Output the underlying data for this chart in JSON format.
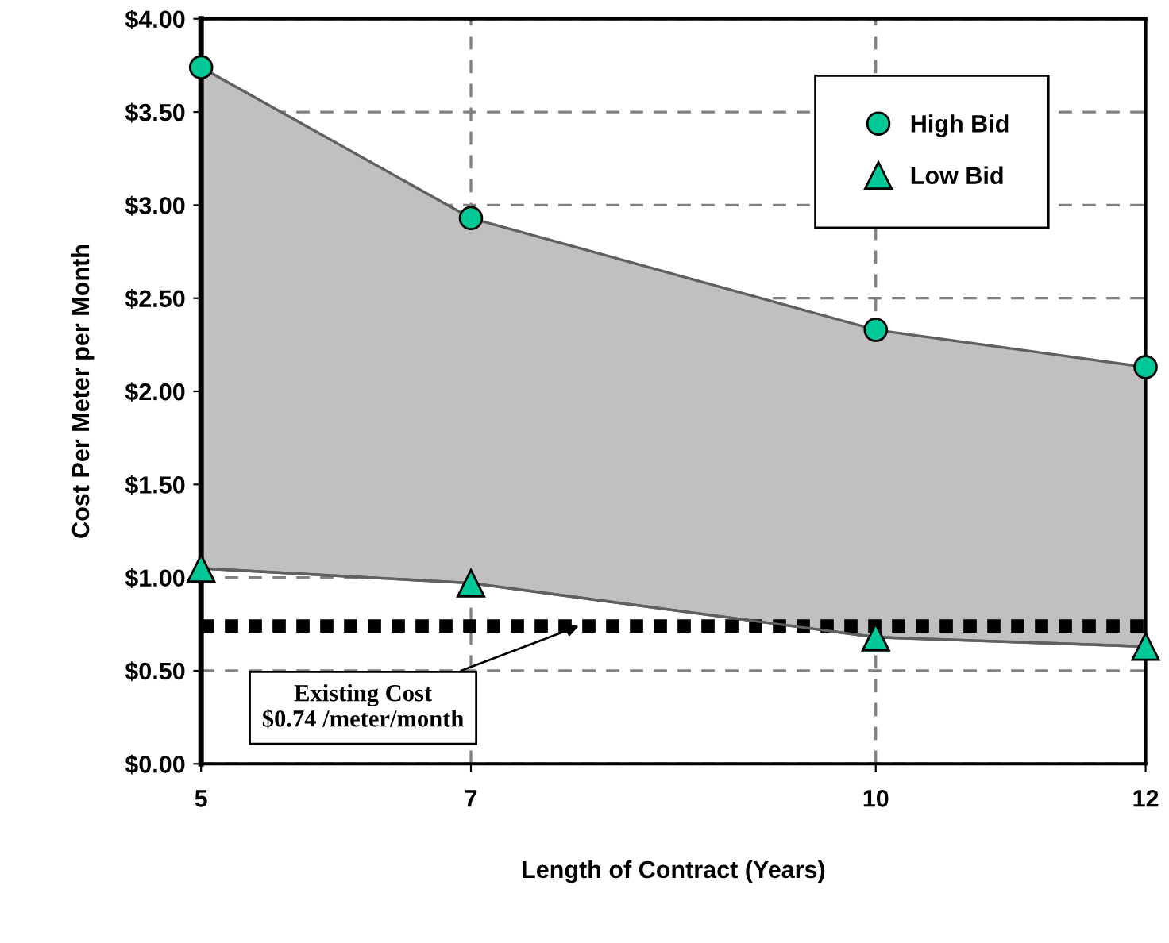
{
  "chart_data": {
    "type": "line",
    "xlabel": "Length of Contract (Years)",
    "ylabel": "Cost Per Meter per Month",
    "x": [
      5,
      7,
      10,
      12
    ],
    "series": [
      {
        "name": "High Bid",
        "color": "#00c896",
        "marker": "circle",
        "values": [
          3.74,
          2.93,
          2.33,
          2.13
        ],
        "lower": [
          1.05,
          0.97,
          0.68,
          0.63
        ],
        "upper": [
          3.74,
          2.93,
          2.33,
          2.13
        ]
      },
      {
        "name": "Low Bid",
        "color": "#00c896",
        "marker": "triangle",
        "values": [
          1.05,
          0.97,
          0.68,
          0.63
        ]
      }
    ],
    "xlim": [
      5,
      12
    ],
    "xticks": [
      5,
      7,
      10,
      12
    ],
    "ylim": [
      0,
      4
    ],
    "yticks": [
      {
        "value": 0,
        "label": "$0.00"
      },
      {
        "value": 0.5,
        "label": "$0.50"
      },
      {
        "value": 1,
        "label": "$1.00"
      },
      {
        "value": 1.5,
        "label": "$1.50"
      },
      {
        "value": 2,
        "label": "$2.00"
      },
      {
        "value": 2.5,
        "label": "$2.50"
      },
      {
        "value": 3,
        "label": "$3.00"
      },
      {
        "value": 3.5,
        "label": "$3.50"
      },
      {
        "value": 4,
        "label": "$4.00"
      }
    ],
    "ref_lines": [
      {
        "axis": "y",
        "value": 0.74,
        "color": "#000000",
        "line_style": "dotted"
      }
    ],
    "annotations": [
      {
        "text": "Existing Cost\n$0.74 /meter/month",
        "x": 7.8,
        "y": 0.74
      }
    ],
    "grid": true,
    "legend": "top right"
  }
}
